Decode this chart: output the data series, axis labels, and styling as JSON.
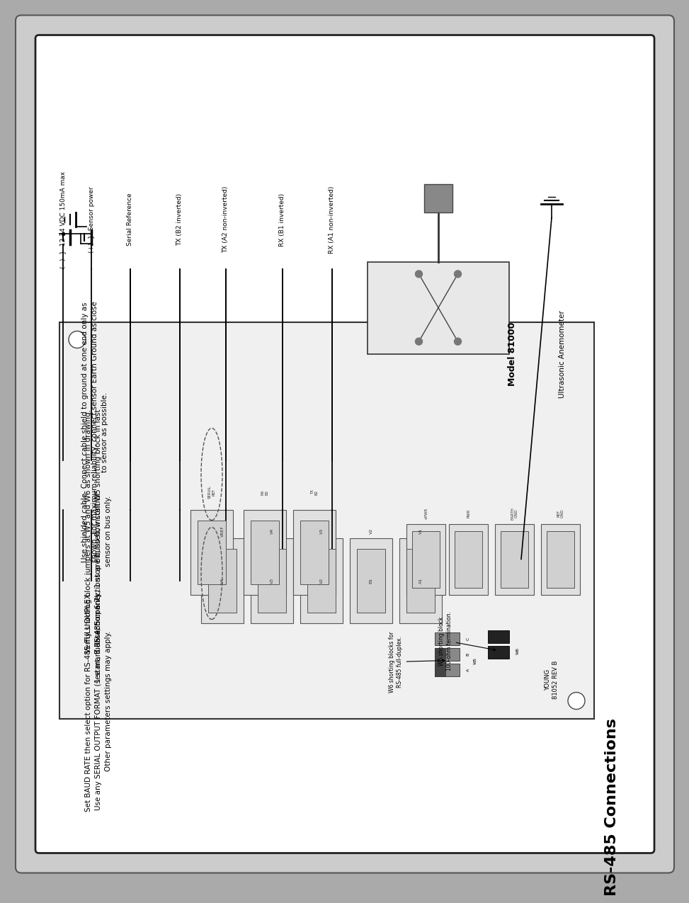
{
  "title": "RS-485 Connections",
  "bg_outer": "#cccccc",
  "bg_inner": "#ffffff",
  "text_color": "#000000",
  "para1": "Set BAUD RATE then select option for RS-485 FULL DUPLEX.\nUse any SERIAL OUTPUT FORMAT (see manual section 6.7).\nOther parameters settings may apply.",
  "para2": "1 start, 8 data, no parity, 1 stop bit, no flow control",
  "para3": "Verfiy shorting block jumpers at W5 and W6 as shown in drawing.\nIf RS-485 connections are bussed, install W5 shorting block in last\nsensor on bus only.",
  "para4": "Use shielded cable. Connect cable shield to ground at one end only as\nshown. For maximum reliability, connect sensor Earth Ground as close\nto sensor as possible.",
  "wire_labels": [
    "RX (A1 non-inverted)",
    "RX (B1 inverted)",
    "TX (A2 non-inverted)",
    "TX (B2 inverted)",
    "Serial Reference",
    "(+)  }  Sensor power",
    "(−)  }  12-24 VDC 150mA max"
  ],
  "model_label": "Model 81000",
  "model_sub": "Ultrasonic Anemometer",
  "young_label": "YOUNG\n81052 REV B",
  "w5_text": "W6 shorting blocks for\nRS-485 full-duplex.",
  "w6_text": "W5 shorting block\n100-ohm termination."
}
